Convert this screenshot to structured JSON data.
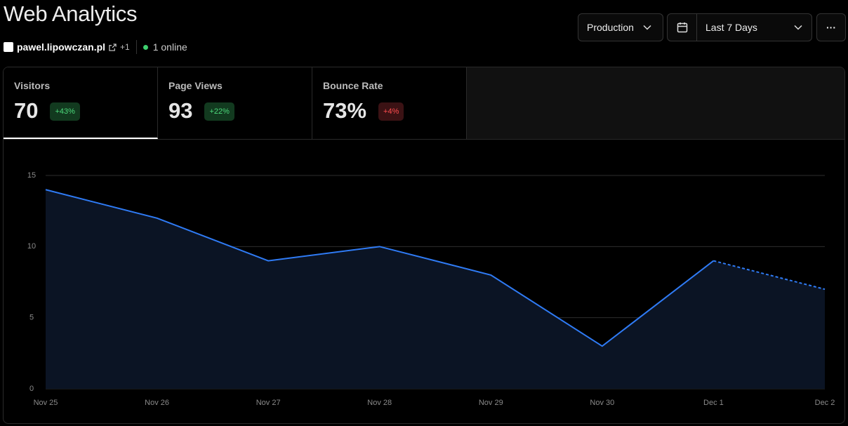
{
  "header": {
    "title": "Web Analytics",
    "site": "pawel.lipowczan.pl",
    "more_sites": "+1",
    "online": "1 online"
  },
  "controls": {
    "environment": "Production",
    "range": "Last 7 Days",
    "menu": "···"
  },
  "metrics": [
    {
      "label": "Visitors",
      "value": "70",
      "change": "+43%",
      "trend": "up"
    },
    {
      "label": "Page Views",
      "value": "93",
      "change": "+22%",
      "trend": "up"
    },
    {
      "label": "Bounce Rate",
      "value": "73%",
      "change": "+4%",
      "trend": "down"
    }
  ],
  "chart_data": {
    "type": "area",
    "categories": [
      "Nov 25",
      "Nov 26",
      "Nov 27",
      "Nov 28",
      "Nov 29",
      "Nov 30",
      "Dec 1",
      "Dec 2"
    ],
    "values": [
      14,
      12,
      9,
      10,
      8,
      3,
      9,
      7
    ],
    "color": "#2f7bf5",
    "dashed_last_segment": true,
    "ylim": [
      0,
      15
    ],
    "yticks": [
      0,
      5,
      10,
      15
    ],
    "grid": true
  }
}
